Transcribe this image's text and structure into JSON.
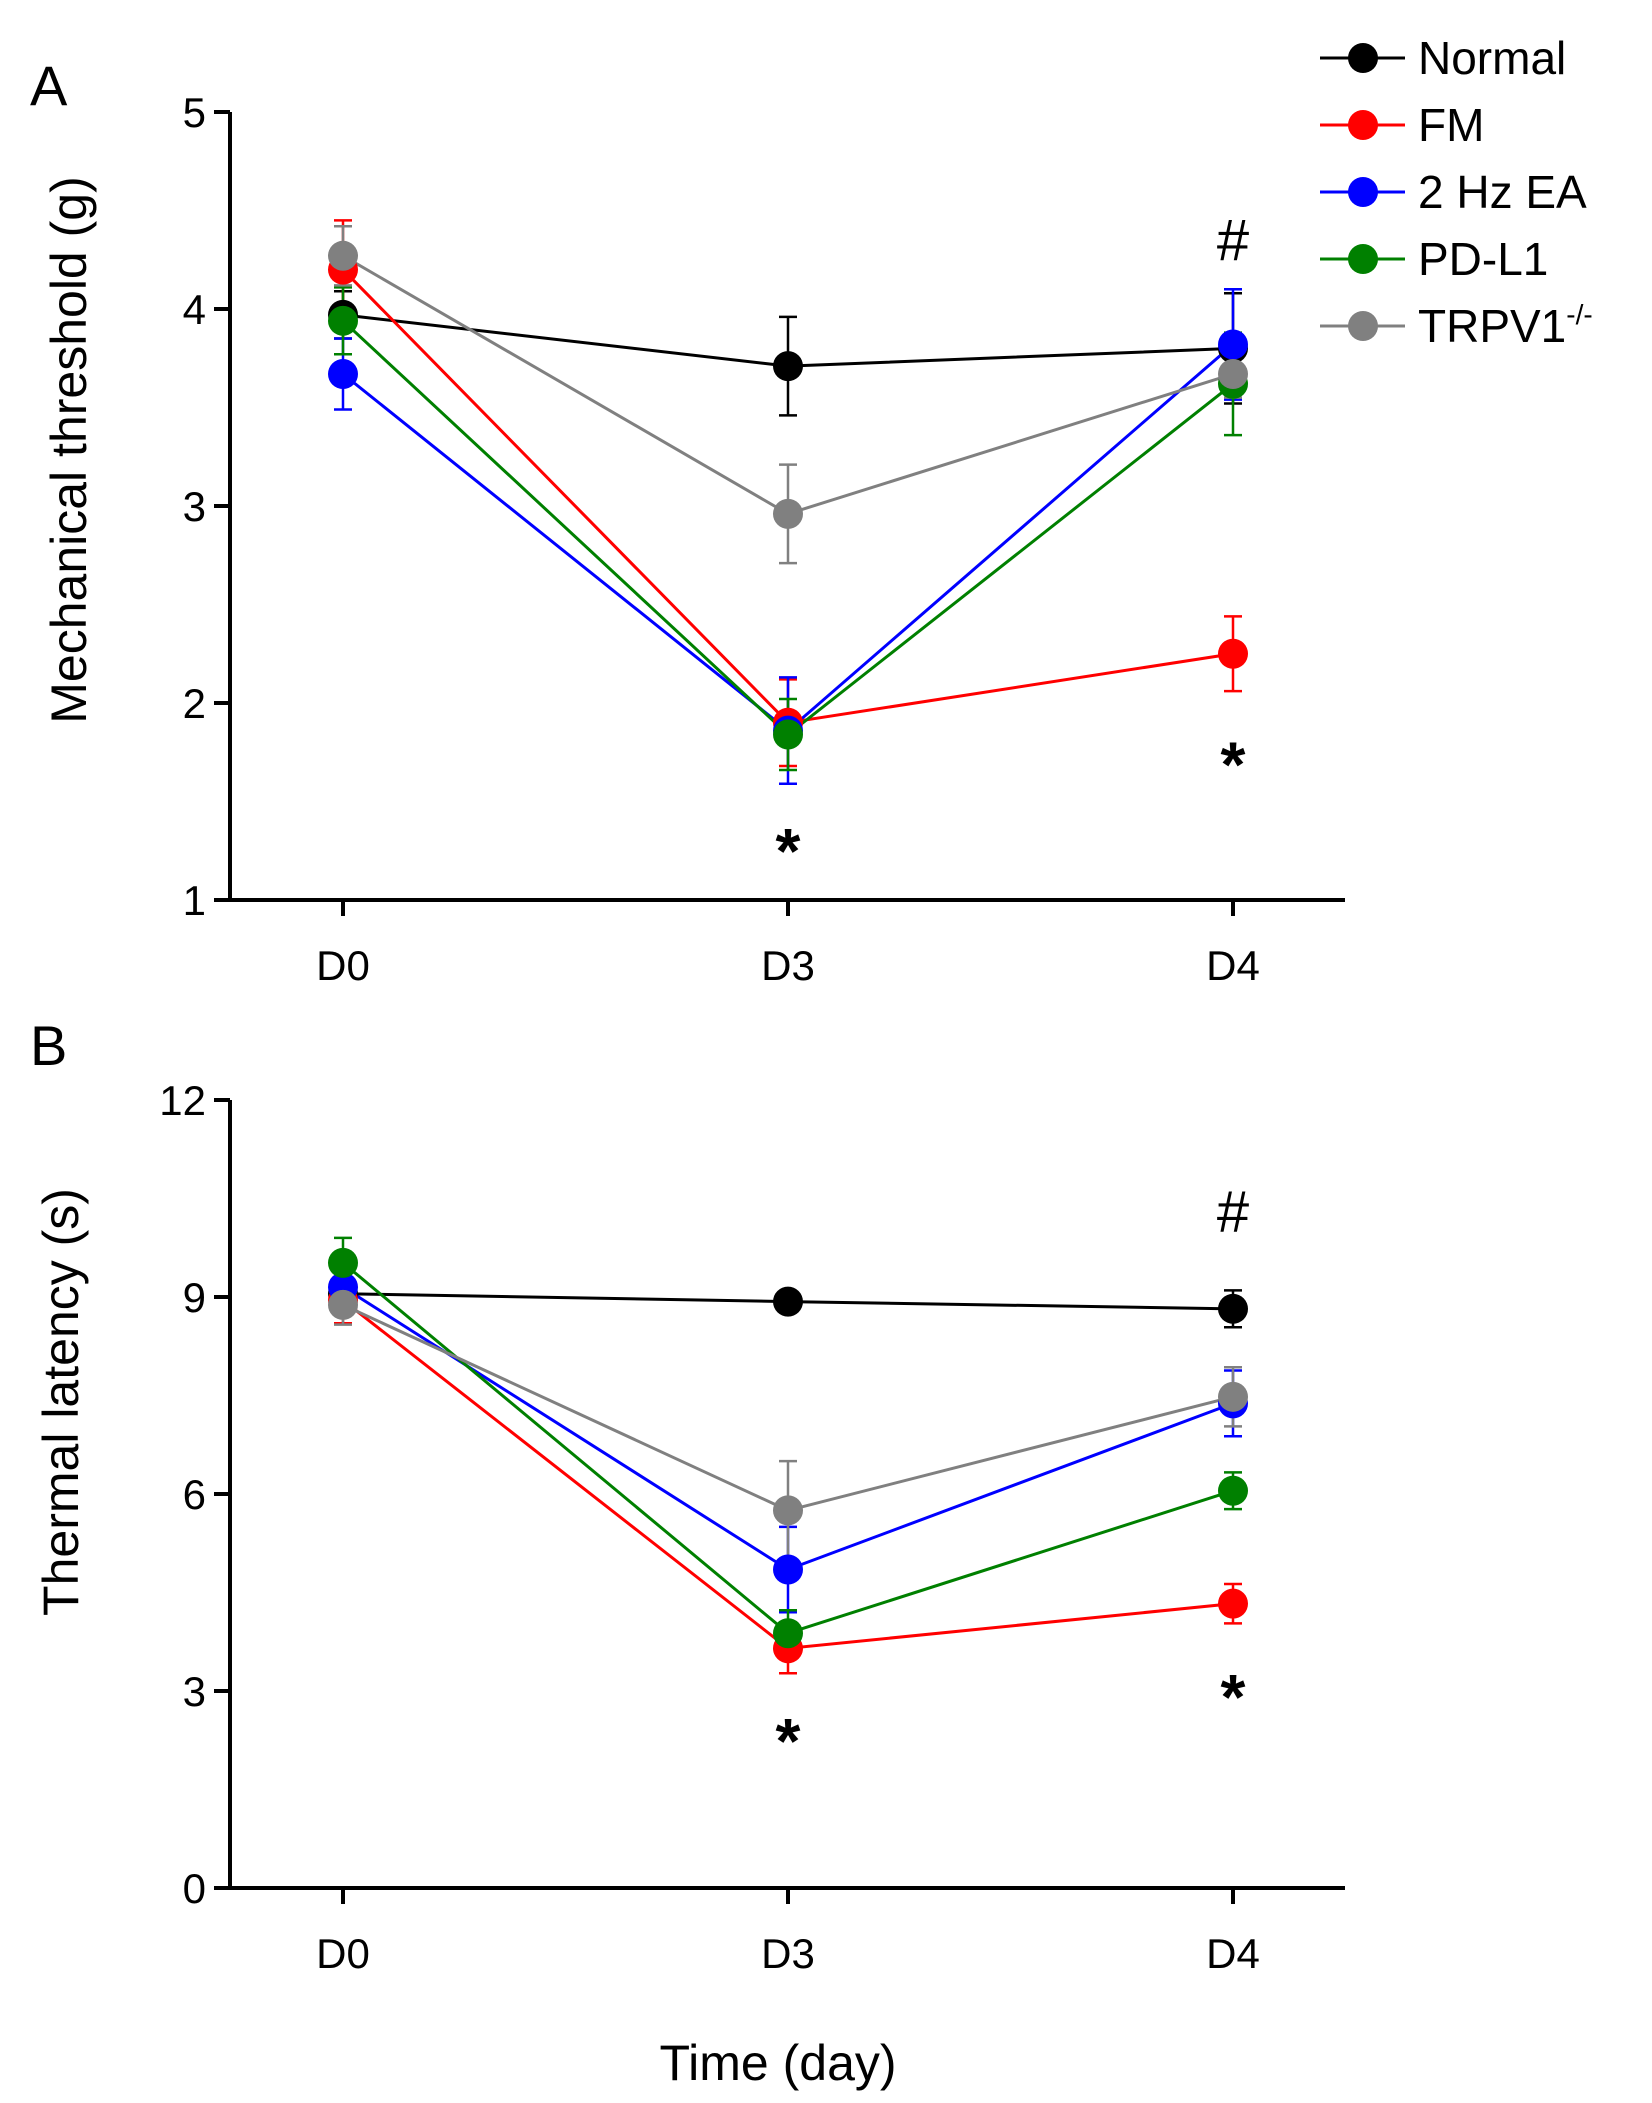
{
  "figure": {
    "shared_xlabel": "Time (day)"
  },
  "legend": {
    "entries": [
      {
        "label": "Normal",
        "color": "#000000"
      },
      {
        "label": "FM",
        "color": "#ff0000"
      },
      {
        "label": "2 Hz EA",
        "color": "#0000ff"
      },
      {
        "label": "PD-L1",
        "color": "#008000"
      },
      {
        "label": "TRPV1",
        "label_sup": "-/-",
        "color": "#808080"
      }
    ]
  },
  "chart_data": [
    {
      "panel": "A",
      "type": "line",
      "title": "",
      "xlabel": "",
      "ylabel": "Mechanical threshold (g)",
      "categories": [
        "D0",
        "D3",
        "D4"
      ],
      "ylim": [
        1,
        5
      ],
      "yticks": [
        1,
        2,
        3,
        4,
        5
      ],
      "series": [
        {
          "name": "Normal",
          "color": "#000000",
          "values": [
            3.97,
            3.71,
            3.8
          ],
          "errors": [
            0.12,
            0.25,
            0.28
          ]
        },
        {
          "name": "FM",
          "color": "#ff0000",
          "values": [
            4.2,
            1.9,
            2.25
          ],
          "errors": [
            0.25,
            0.22,
            0.19
          ]
        },
        {
          "name": "2 Hz EA",
          "color": "#0000ff",
          "values": [
            3.67,
            1.86,
            3.82
          ],
          "errors": [
            0.18,
            0.27,
            0.28
          ]
        },
        {
          "name": "PD-L1",
          "color": "#008000",
          "values": [
            3.94,
            1.84,
            3.62
          ],
          "errors": [
            0.17,
            0.18,
            0.26
          ]
        },
        {
          "name": "TRPV1-/-",
          "color": "#808080",
          "values": [
            4.27,
            2.96,
            3.67
          ],
          "errors": [
            0.15,
            0.25,
            0.12
          ]
        }
      ],
      "annotations": [
        {
          "text": "*",
          "x": "D3",
          "y": 1.32,
          "kind": "star"
        },
        {
          "text": "*",
          "x": "D4",
          "y": 1.76,
          "kind": "star"
        },
        {
          "text": "#",
          "x": "D4",
          "y": 4.35,
          "kind": "hash"
        }
      ]
    },
    {
      "panel": "B",
      "type": "line",
      "title": "",
      "xlabel": "Time (day)",
      "ylabel": "Thermal latency (s)",
      "categories": [
        "D0",
        "D3",
        "D4"
      ],
      "ylim": [
        0,
        12
      ],
      "yticks": [
        0,
        3,
        6,
        9,
        12
      ],
      "series": [
        {
          "name": "Normal",
          "color": "#000000",
          "values": [
            9.05,
            8.93,
            8.82
          ],
          "errors": [
            0.25,
            0.1,
            0.28
          ]
        },
        {
          "name": "FM",
          "color": "#ff0000",
          "values": [
            8.95,
            3.65,
            4.33
          ],
          "errors": [
            0.35,
            0.38,
            0.3
          ]
        },
        {
          "name": "2 Hz EA",
          "color": "#0000ff",
          "values": [
            9.15,
            4.85,
            7.38
          ],
          "errors": [
            0.3,
            0.65,
            0.5
          ]
        },
        {
          "name": "PD-L1",
          "color": "#008000",
          "values": [
            9.52,
            3.88,
            6.05
          ],
          "errors": [
            0.38,
            0.35,
            0.28
          ]
        },
        {
          "name": "TRPV1-/-",
          "color": "#808080",
          "values": [
            8.88,
            5.75,
            7.48
          ],
          "errors": [
            0.3,
            0.75,
            0.45
          ]
        }
      ],
      "annotations": [
        {
          "text": "*",
          "x": "D3",
          "y": 2.45,
          "kind": "star"
        },
        {
          "text": "*",
          "x": "D4",
          "y": 3.12,
          "kind": "star"
        },
        {
          "text": "#",
          "x": "D4",
          "y": 10.3,
          "kind": "hash"
        }
      ]
    }
  ]
}
